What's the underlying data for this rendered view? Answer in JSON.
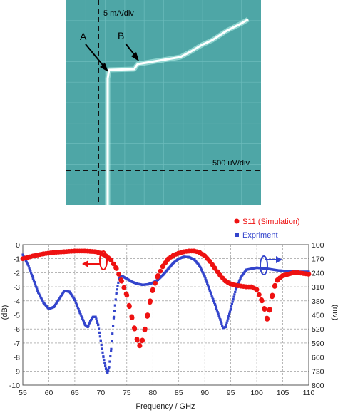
{
  "photo": {
    "vertical_scale_label": "5 mA/div",
    "horizontal_scale_label": "500 uV/div",
    "marker_a": "A",
    "marker_b": "B",
    "screen_color": "#4ea6a6"
  },
  "chart_data": {
    "type": "scatter",
    "xlabel": "Frequency / GHz",
    "ylabel_left": "(dB)",
    "ylabel_right": "(mv)",
    "x_ticks": [
      55,
      60,
      65,
      70,
      75,
      80,
      85,
      90,
      95,
      100,
      105,
      110
    ],
    "xlim": [
      55,
      110
    ],
    "ylim_left": [
      -10,
      0
    ],
    "y_ticks_left": [
      0,
      -1,
      -2,
      -3,
      -4,
      -5,
      -6,
      -7,
      -8,
      -9,
      -10
    ],
    "ylim_right": [
      100,
      800
    ],
    "y_ticks_right": [
      100,
      170,
      240,
      310,
      380,
      450,
      520,
      590,
      660,
      730,
      800
    ],
    "grid": true,
    "legend_placement": "top-right",
    "series": [
      {
        "name": "S11 (Simulation)",
        "axis": "left",
        "color": "#ee1111",
        "marker": "circle",
        "x": [
          55,
          57,
          59,
          61,
          63,
          65,
          67,
          69,
          70,
          71,
          72,
          73,
          74,
          75,
          75.5,
          76,
          76.5,
          77,
          77.5,
          78,
          78.5,
          79,
          79.5,
          80,
          81,
          82,
          83,
          84,
          85,
          86,
          87,
          88,
          89,
          90,
          91,
          92,
          93,
          94,
          95,
          96,
          97,
          98,
          99,
          100,
          101,
          101.5,
          102,
          102.5,
          103,
          103.5,
          104,
          105,
          106,
          107,
          108,
          109,
          110
        ],
        "y": [
          -1.0,
          -0.8,
          -0.65,
          -0.55,
          -0.5,
          -0.45,
          -0.45,
          -0.5,
          -0.6,
          -0.8,
          -1.1,
          -1.7,
          -2.6,
          -3.6,
          -4.4,
          -5.2,
          -6.0,
          -6.8,
          -7.2,
          -6.8,
          -6.0,
          -5.0,
          -4.0,
          -3.2,
          -2.2,
          -1.5,
          -1.0,
          -0.75,
          -0.6,
          -0.5,
          -0.45,
          -0.45,
          -0.55,
          -0.8,
          -1.2,
          -1.7,
          -2.2,
          -2.6,
          -2.8,
          -2.9,
          -2.95,
          -3.0,
          -3.0,
          -3.2,
          -4.0,
          -4.6,
          -5.3,
          -4.6,
          -3.6,
          -2.9,
          -2.5,
          -2.2,
          -2.1,
          -2.0,
          -2.0,
          -2.05,
          -2.1
        ]
      },
      {
        "name": "Expriment",
        "axis": "right",
        "color": "#3344cc",
        "marker": "square",
        "x": [
          55,
          56,
          57,
          58,
          59,
          60,
          61,
          62,
          63,
          64,
          65,
          66,
          67,
          67.5,
          68,
          68.5,
          69,
          69.5,
          70,
          70.5,
          71,
          71.3,
          71.6,
          72,
          72.5,
          73,
          73.5,
          74,
          75,
          76,
          77,
          78,
          79,
          80,
          81,
          82,
          83,
          84,
          85,
          86,
          87,
          88,
          89,
          90,
          91,
          92,
          93,
          93.5,
          94,
          95,
          96,
          97,
          98,
          100,
          102,
          104,
          106,
          108,
          110
        ],
        "y": [
          150,
          200,
          270,
          340,
          390,
          420,
          410,
          370,
          330,
          335,
          375,
          440,
          500,
          510,
          480,
          460,
          460,
          500,
          580,
          660,
          720,
          740,
          710,
          620,
          460,
          340,
          270,
          255,
          270,
          285,
          295,
          300,
          298,
          290,
          275,
          250,
          220,
          190,
          170,
          160,
          162,
          175,
          205,
          260,
          330,
          400,
          475,
          515,
          510,
          420,
          320,
          260,
          225,
          215,
          220,
          228,
          232,
          235,
          235
        ]
      }
    ],
    "annotations": [
      {
        "text": "",
        "type": "ellipse-arrow",
        "series": "S11 (Simulation)",
        "direction": "left",
        "near_x": 71
      },
      {
        "text": "",
        "type": "ellipse-arrow",
        "series": "Expriment",
        "direction": "right",
        "near_x": 101
      }
    ]
  }
}
